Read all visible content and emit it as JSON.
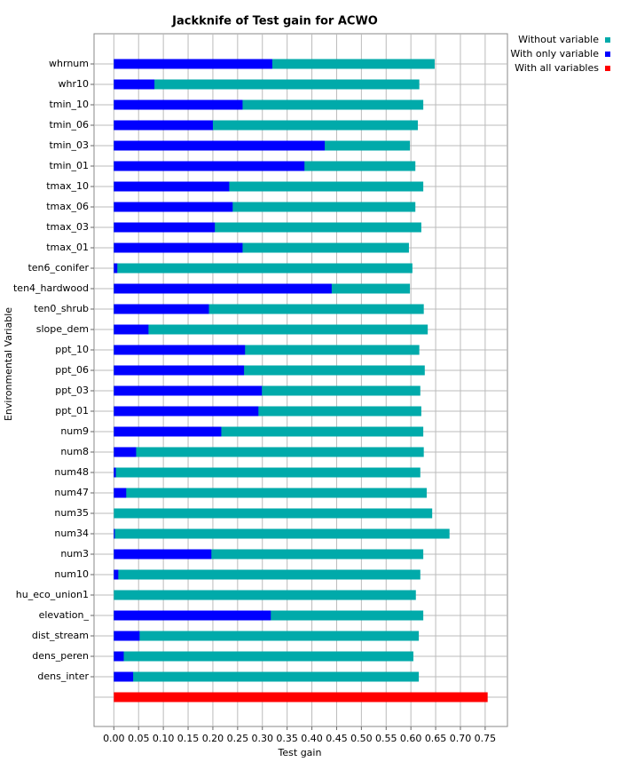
{
  "chart_data": {
    "type": "bar",
    "orientation": "horizontal",
    "title": "Jackknife of Test gain for ACWO",
    "x_label": "Test gain",
    "y_label": "Environmental Variable",
    "categories": [
      "whrnum",
      "whr10",
      "tmin_10",
      "tmin_06",
      "tmin_03",
      "tmin_01",
      "tmax_10",
      "tmax_06",
      "tmax_03",
      "tmax_01",
      "ten6_conifer",
      "ten4_hardwood",
      "ten0_shrub",
      "slope_dem",
      "ppt_10",
      "ppt_06",
      "ppt_03",
      "ppt_01",
      "num9",
      "num8",
      "num48",
      "num47",
      "num35",
      "num34",
      "num3",
      "num10",
      "hu_eco_union1",
      "elevation_",
      "dist_stream",
      "dens_peren",
      "dens_inter",
      null
    ],
    "series": [
      {
        "name": "Without variable",
        "color": "#00aaaa",
        "values": [
          0.648,
          0.617,
          0.625,
          0.614,
          0.598,
          0.609,
          0.625,
          0.609,
          0.621,
          0.596,
          0.603,
          0.598,
          0.626,
          0.634,
          0.617,
          0.628,
          0.619,
          0.621,
          0.625,
          0.626,
          0.619,
          0.632,
          0.643,
          0.678,
          0.625,
          0.619,
          0.61,
          0.625,
          0.616,
          0.605,
          0.616,
          null
        ]
      },
      {
        "name": "With only variable",
        "color": "#0000ff",
        "values": [
          0.32,
          0.082,
          0.26,
          0.2,
          0.426,
          0.385,
          0.233,
          0.24,
          0.204,
          0.26,
          0.007,
          0.44,
          0.192,
          0.07,
          0.265,
          0.263,
          0.299,
          0.292,
          0.217,
          0.045,
          0.004,
          0.025,
          0.0,
          0.002,
          0.197,
          0.009,
          0.0,
          0.317,
          0.052,
          0.02,
          0.039,
          null
        ]
      },
      {
        "name": "With all variables",
        "color": "#ff0000",
        "values": [
          null,
          null,
          null,
          null,
          null,
          null,
          null,
          null,
          null,
          null,
          null,
          null,
          null,
          null,
          null,
          null,
          null,
          null,
          null,
          null,
          null,
          null,
          null,
          null,
          null,
          null,
          null,
          null,
          null,
          null,
          null,
          0.755
        ]
      }
    ],
    "xlim": [
      -0.04,
      0.795
    ],
    "xticks": [
      {
        "value": 0,
        "label": "0.00"
      },
      {
        "value": 0.05,
        "label": "0.05"
      },
      {
        "value": 0.1,
        "label": "0.10"
      },
      {
        "value": 0.15,
        "label": "0.15"
      },
      {
        "value": 0.2,
        "label": "0.20"
      },
      {
        "value": 0.25,
        "label": "0.25"
      },
      {
        "value": 0.3,
        "label": "0.30"
      },
      {
        "value": 0.35,
        "label": "0.35"
      },
      {
        "value": 0.4,
        "label": "0.40"
      },
      {
        "value": 0.45,
        "label": "0.45"
      },
      {
        "value": 0.5,
        "label": "0.50"
      },
      {
        "value": 0.55,
        "label": "0.55"
      },
      {
        "value": 0.6,
        "label": "0.60"
      },
      {
        "value": 0.65,
        "label": "0.65"
      },
      {
        "value": 0.7,
        "label": "0.70"
      },
      {
        "value": 0.75,
        "label": "0.75"
      }
    ],
    "grid": true,
    "legend": "top-right"
  }
}
